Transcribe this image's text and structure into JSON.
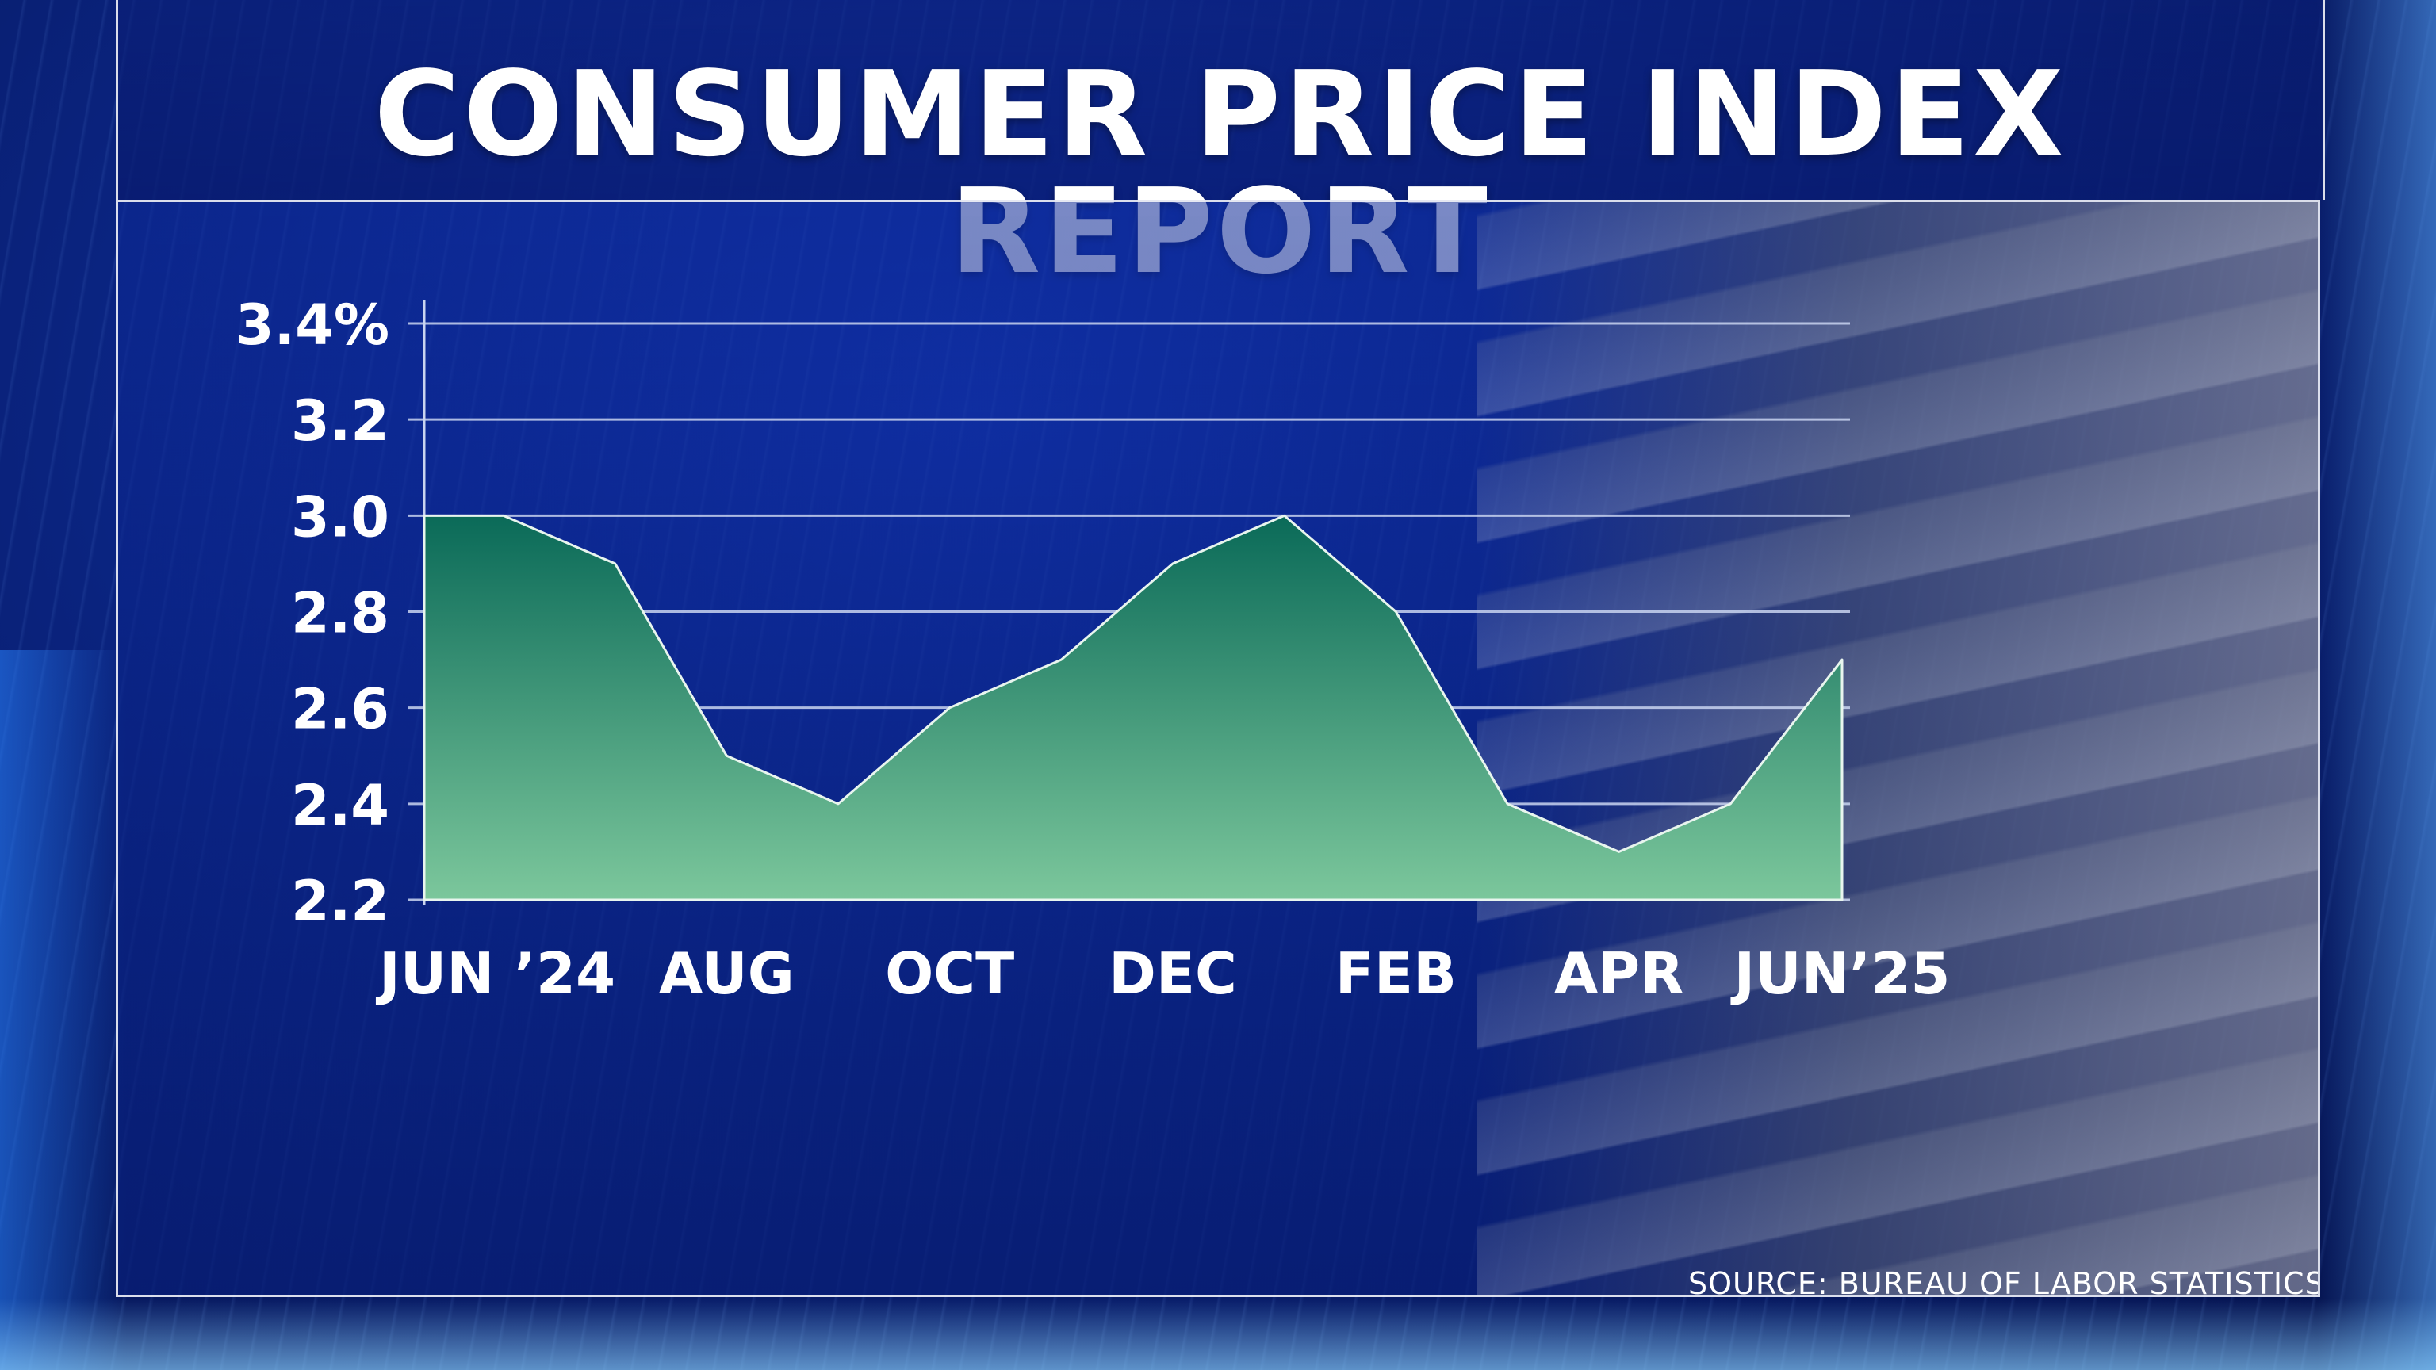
{
  "title": "CONSUMER PRICE INDEX REPORT",
  "source": "SOURCE: BUREAU OF LABOR STATISTICS",
  "colors": {
    "area_top": "#0a6a58",
    "area_bottom": "#7cc79c",
    "gridline": "#c9d4f0",
    "text": "#ffffff"
  },
  "chart_data": {
    "type": "area",
    "title": "CONSUMER PRICE INDEX REPORT",
    "xlabel": "",
    "ylabel": "",
    "x": [
      "Jun 2024",
      "Jul 2024",
      "Aug 2024",
      "Sep 2024",
      "Oct 2024",
      "Nov 2024",
      "Dec 2024",
      "Jan 2025",
      "Feb 2025",
      "Mar 2025",
      "Apr 2025",
      "May 2025",
      "Jun 2025"
    ],
    "values": [
      3.0,
      2.9,
      2.5,
      2.4,
      2.6,
      2.7,
      2.9,
      3.0,
      2.8,
      2.4,
      2.3,
      2.4,
      2.7
    ],
    "first_value_held": true,
    "ylim": [
      2.2,
      3.4
    ],
    "y_ticks": [
      3.4,
      3.2,
      3.0,
      2.8,
      2.6,
      2.4,
      2.2
    ],
    "y_tick_labels": [
      "3.4%",
      "3.2",
      "3.0",
      "2.8",
      "2.6",
      "2.4",
      "2.2"
    ],
    "x_tick_labels": [
      {
        "label": "JUN ’24",
        "index": 0
      },
      {
        "label": "AUG",
        "index": 2
      },
      {
        "label": "OCT",
        "index": 4
      },
      {
        "label": "DEC",
        "index": 6
      },
      {
        "label": "FEB",
        "index": 8
      },
      {
        "label": "APR",
        "index": 10
      },
      {
        "label": "JUN’25",
        "index": 12
      }
    ],
    "grid": true,
    "legend": "none"
  }
}
